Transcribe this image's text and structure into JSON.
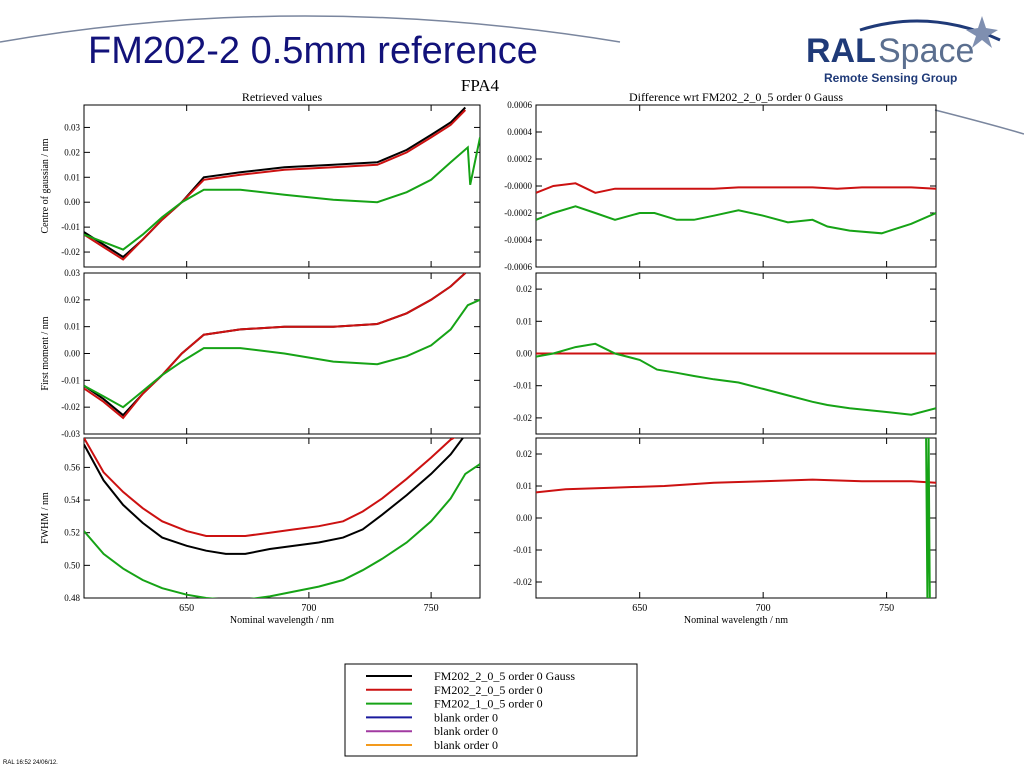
{
  "slide": {
    "title": "FM202-2 0.5mm reference",
    "footer": "RAL 16:52 24/06/12."
  },
  "logo": {
    "ral": "RAL",
    "space": "Space",
    "group": "Remote Sensing Group"
  },
  "figure_title": "FPA4",
  "legend": [
    {
      "label": "FM202_2_0_5 order 0 Gauss",
      "color": "#000000"
    },
    {
      "label": "FM202_2_0_5 order 0",
      "color": "#cc1111"
    },
    {
      "label": "FM202_1_0_5 order 0",
      "color": "#16a316"
    },
    {
      "label": "blank order 0",
      "color": "#1a1a9e"
    },
    {
      "label": "blank order 0",
      "color": "#a13aa1"
    },
    {
      "label": "blank order 0",
      "color": "#f39a1d"
    }
  ],
  "chart_data": [
    {
      "type": "line",
      "title": "Retrieved values",
      "ylabel": "Centre of gaussian / nm",
      "xlabel": "",
      "xlim": [
        608,
        770
      ],
      "ylim": [
        -0.026,
        0.039
      ],
      "x_ticks": [
        650,
        700,
        750
      ],
      "x_tick_labels": [
        "",
        "",
        ""
      ],
      "y_ticks": [
        -0.02,
        -0.01,
        0.0,
        0.01,
        0.02,
        0.03
      ],
      "y_tick_labels": [
        "-0.02",
        "-0.01",
        "0.00",
        "0.01",
        "0.02",
        "0.03"
      ],
      "series": [
        {
          "color": "#000000",
          "x": [
            608,
            616,
            624,
            632,
            640,
            648,
            657,
            672,
            690,
            710,
            728,
            740,
            750,
            758,
            764
          ],
          "y": [
            -0.012,
            -0.017,
            -0.022,
            -0.015,
            -0.007,
            0.0,
            0.01,
            0.012,
            0.014,
            0.015,
            0.016,
            0.021,
            0.027,
            0.032,
            0.038
          ]
        },
        {
          "color": "#cc1111",
          "x": [
            608,
            616,
            624,
            632,
            640,
            648,
            657,
            672,
            690,
            710,
            728,
            740,
            750,
            758,
            764
          ],
          "y": [
            -0.013,
            -0.018,
            -0.023,
            -0.015,
            -0.007,
            0.0,
            0.009,
            0.011,
            0.013,
            0.014,
            0.015,
            0.02,
            0.026,
            0.031,
            0.037
          ]
        },
        {
          "color": "#16a316",
          "x": [
            608,
            616,
            624,
            632,
            640,
            648,
            657,
            672,
            690,
            710,
            728,
            740,
            750,
            758,
            765,
            766,
            770
          ],
          "y": [
            -0.013,
            -0.016,
            -0.019,
            -0.013,
            -0.006,
            0.0,
            0.005,
            0.005,
            0.003,
            0.001,
            0.0,
            0.004,
            0.009,
            0.016,
            0.022,
            0.007,
            0.026
          ]
        }
      ]
    },
    {
      "type": "line",
      "title": "Difference wrt FM202_2_0_5 order 0 Gauss",
      "ylabel": "",
      "xlabel": "",
      "xlim": [
        608,
        770
      ],
      "ylim": [
        -0.0006,
        0.0006
      ],
      "x_ticks": [
        650,
        700,
        750
      ],
      "x_tick_labels": [
        "",
        "",
        ""
      ],
      "y_ticks": [
        -0.0006,
        -0.0004,
        -0.0002,
        0.0,
        0.0002,
        0.0004,
        0.0006
      ],
      "y_tick_labels": [
        "-0.0006",
        "-0.0004",
        "-0.0002",
        "-0.0000",
        "0.0002",
        "0.0004",
        "0.0006"
      ],
      "series": [
        {
          "color": "#cc1111",
          "x": [
            608,
            615,
            624,
            632,
            640,
            650,
            660,
            670,
            680,
            690,
            700,
            710,
            720,
            730,
            740,
            750,
            760,
            770
          ],
          "y": [
            -5e-05,
            0.0,
            2e-05,
            -5e-05,
            -2e-05,
            -2e-05,
            -2e-05,
            -2e-05,
            -2e-05,
            -1e-05,
            -1e-05,
            -1e-05,
            -1e-05,
            -2e-05,
            -1e-05,
            -1e-05,
            -1e-05,
            -2e-05
          ]
        },
        {
          "color": "#16a316",
          "x": [
            608,
            615,
            624,
            632,
            640,
            650,
            656,
            665,
            672,
            680,
            690,
            700,
            710,
            720,
            726,
            735,
            748,
            760,
            770
          ],
          "y": [
            -0.00025,
            -0.0002,
            -0.00015,
            -0.0002,
            -0.00025,
            -0.0002,
            -0.0002,
            -0.00025,
            -0.00025,
            -0.00022,
            -0.00018,
            -0.00022,
            -0.00027,
            -0.00025,
            -0.0003,
            -0.00033,
            -0.00035,
            -0.00028,
            -0.0002
          ]
        }
      ]
    },
    {
      "type": "line",
      "title": "",
      "ylabel": "First moment / nm",
      "xlabel": "",
      "xlim": [
        608,
        770
      ],
      "ylim": [
        -0.03,
        0.03
      ],
      "x_ticks": [
        650,
        700,
        750
      ],
      "x_tick_labels": [
        "",
        "",
        ""
      ],
      "y_ticks": [
        -0.03,
        -0.02,
        -0.01,
        0.0,
        0.01,
        0.02,
        0.03
      ],
      "y_tick_labels": [
        "-0.03",
        "-0.02",
        "-0.01",
        "0.00",
        "0.01",
        "0.02",
        "0.03"
      ],
      "series": [
        {
          "color": "#000000",
          "x": [
            608,
            616,
            624,
            632,
            640,
            648,
            657,
            672,
            690,
            710,
            728,
            740,
            750,
            758,
            764
          ],
          "y": [
            -0.012,
            -0.017,
            -0.023,
            -0.015,
            -0.008,
            0.0,
            0.007,
            0.009,
            0.01,
            0.01,
            0.011,
            0.015,
            0.02,
            0.025,
            0.03
          ]
        },
        {
          "color": "#cc1111",
          "x": [
            608,
            616,
            624,
            632,
            640,
            648,
            657,
            672,
            690,
            710,
            728,
            740,
            750,
            758,
            764
          ],
          "y": [
            -0.013,
            -0.018,
            -0.024,
            -0.015,
            -0.008,
            0.0,
            0.007,
            0.009,
            0.01,
            0.01,
            0.011,
            0.015,
            0.02,
            0.025,
            0.03
          ]
        },
        {
          "color": "#16a316",
          "x": [
            608,
            616,
            624,
            632,
            640,
            648,
            657,
            672,
            690,
            710,
            728,
            740,
            750,
            758,
            765,
            770
          ],
          "y": [
            -0.012,
            -0.016,
            -0.02,
            -0.014,
            -0.008,
            -0.003,
            0.002,
            0.002,
            0.0,
            -0.003,
            -0.004,
            -0.001,
            0.003,
            0.009,
            0.018,
            0.02
          ]
        }
      ]
    },
    {
      "type": "line",
      "title": "",
      "ylabel": "",
      "xlabel": "",
      "xlim": [
        608,
        770
      ],
      "ylim": [
        -0.025,
        0.025
      ],
      "x_ticks": [
        650,
        700,
        750
      ],
      "x_tick_labels": [
        "",
        "",
        ""
      ],
      "y_ticks": [
        -0.02,
        -0.01,
        0.0,
        0.01,
        0.02
      ],
      "y_tick_labels": [
        "-0.02",
        "-0.01",
        "0.00",
        "0.01",
        "0.02"
      ],
      "series": [
        {
          "color": "#cc1111",
          "x": [
            608,
            620,
            640,
            660,
            680,
            700,
            720,
            740,
            760,
            770
          ],
          "y": [
            0.0,
            0.0,
            0.0,
            0.0,
            0.0,
            0.0,
            0.0,
            0.0,
            0.0,
            0.0
          ]
        },
        {
          "color": "#16a316",
          "x": [
            608,
            615,
            624,
            632,
            640,
            650,
            657,
            665,
            672,
            680,
            690,
            700,
            710,
            720,
            726,
            735,
            748,
            760,
            770
          ],
          "y": [
            -0.001,
            0.0,
            0.002,
            0.003,
            0.0,
            -0.002,
            -0.005,
            -0.006,
            -0.007,
            -0.008,
            -0.009,
            -0.011,
            -0.013,
            -0.015,
            -0.016,
            -0.017,
            -0.018,
            -0.019,
            -0.017
          ]
        }
      ]
    },
    {
      "type": "line",
      "title": "",
      "ylabel": "FWHM / nm",
      "xlabel": "Nominal wavelength / nm",
      "xlim": [
        608,
        770
      ],
      "ylim": [
        0.48,
        0.578
      ],
      "x_ticks": [
        650,
        700,
        750
      ],
      "x_tick_labels": [
        "650",
        "700",
        "750"
      ],
      "y_ticks": [
        0.48,
        0.5,
        0.52,
        0.54,
        0.56
      ],
      "y_tick_labels": [
        "0.48",
        "0.50",
        "0.52",
        "0.54",
        "0.56"
      ],
      "series": [
        {
          "color": "#000000",
          "x": [
            608,
            616,
            624,
            632,
            640,
            650,
            658,
            666,
            674,
            684,
            694,
            704,
            714,
            722,
            730,
            740,
            750,
            758,
            764
          ],
          "y": [
            0.574,
            0.552,
            0.537,
            0.526,
            0.517,
            0.512,
            0.509,
            0.507,
            0.507,
            0.51,
            0.512,
            0.514,
            0.517,
            0.522,
            0.531,
            0.543,
            0.556,
            0.568,
            0.58
          ]
        },
        {
          "color": "#cc1111",
          "x": [
            608,
            616,
            624,
            632,
            640,
            650,
            658,
            666,
            674,
            684,
            694,
            704,
            714,
            722,
            730,
            740,
            750,
            758,
            764
          ],
          "y": [
            0.578,
            0.557,
            0.545,
            0.535,
            0.527,
            0.521,
            0.518,
            0.518,
            0.518,
            0.52,
            0.522,
            0.524,
            0.527,
            0.533,
            0.541,
            0.553,
            0.566,
            0.577,
            0.582
          ]
        },
        {
          "color": "#16a316",
          "x": [
            608,
            616,
            624,
            632,
            640,
            650,
            658,
            666,
            674,
            684,
            694,
            704,
            714,
            722,
            730,
            740,
            750,
            758,
            764,
            770
          ],
          "y": [
            0.521,
            0.507,
            0.498,
            0.491,
            0.486,
            0.482,
            0.48,
            0.479,
            0.479,
            0.481,
            0.484,
            0.487,
            0.491,
            0.497,
            0.504,
            0.514,
            0.527,
            0.541,
            0.556,
            0.562
          ]
        }
      ]
    },
    {
      "type": "line",
      "title": "",
      "ylabel": "",
      "xlabel": "Nominal wavelength / nm",
      "xlim": [
        608,
        770
      ],
      "ylim": [
        -0.025,
        0.025
      ],
      "x_ticks": [
        650,
        700,
        750
      ],
      "x_tick_labels": [
        "650",
        "700",
        "750"
      ],
      "y_ticks": [
        -0.02,
        -0.01,
        0.0,
        0.01,
        0.02
      ],
      "y_tick_labels": [
        "-0.02",
        "-0.01",
        "0.00",
        "0.01",
        "0.02"
      ],
      "series": [
        {
          "color": "#cc1111",
          "x": [
            608,
            620,
            640,
            660,
            680,
            700,
            720,
            740,
            760,
            770
          ],
          "y": [
            0.008,
            0.009,
            0.0095,
            0.01,
            0.011,
            0.0115,
            0.012,
            0.0115,
            0.0115,
            0.011
          ]
        },
        {
          "color": "#16a316",
          "x": [
            766,
            766.5,
            767,
            767.5
          ],
          "y": [
            0.025,
            -0.025,
            0.025,
            -0.025
          ]
        }
      ]
    }
  ]
}
